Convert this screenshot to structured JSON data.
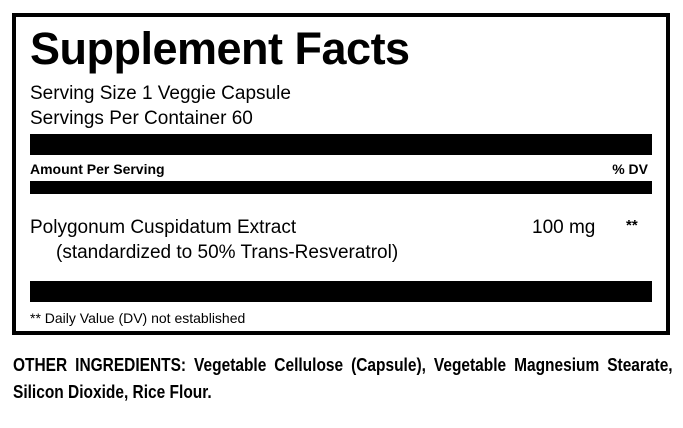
{
  "title": "Supplement Facts",
  "serving_size": "Serving Size 1 Veggie Capsule",
  "servings_per_container": "Servings Per Container 60",
  "header": {
    "amount": "Amount Per Serving",
    "dv": "% DV"
  },
  "ingredients": [
    {
      "name": "Polygonum Cuspidatum Extract",
      "detail": "(standardized to 50% Trans-Resveratrol)",
      "amount": "100 mg",
      "dv": "**"
    }
  ],
  "footnote": "** Daily Value (DV) not established",
  "other_ingredients": {
    "label": "OTHER INGREDIENTS:",
    "text": "Vegetable Cellulose (Capsule), Vegetable Magnesium Stearate, Silicon Dioxide, Rice Flour."
  }
}
